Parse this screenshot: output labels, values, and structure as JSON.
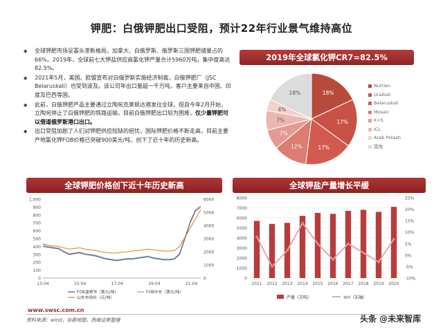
{
  "title": "钾肥：白俄钾肥出口受阻，预计22年行业景气维持高位",
  "bullets": [
    {
      "text": "全球钾肥市场呈寡头垄断格局，加拿大、白俄罗斯、俄罗斯三国钾肥储量占的66%。2019年，全球前七大钾盐供应商氯化钾产量合计5960万吨，集中度高达82.5%。"
    },
    {
      "text": "2021年5月，美国、欧盟宣布对白俄罗斯实施经济制裁，白俄钾肥厂（JSC Belaruskali）也受到波及。该公司年出口量超一千万吨，客户主要来自中国、印度及巴西等国。"
    },
    {
      "text": "此前，白俄钾肥产品主要通过立陶宛克莱佩达港发往全球，但自今年2月开始，立陶宛停止了白俄钾肥的铁路运输，目前白俄钾肥出口较为困难，",
      "highlight": "仅少量钾肥可以借道俄罗斯港口出口。"
    },
    {
      "text": "出口受阻加剧了人们对钾肥供应短缺的担忧，国际钾肥价格不断走高，目前主要产地氯化钾FOB价格已突破900美元/吨，创下了近十年的历史新高。"
    }
  ],
  "pie_panel": {
    "title": "2019年全球氯化钾CR7=82.5%",
    "chart_data": {
      "type": "pie",
      "labels": [
        "Nutrien",
        "Uralkali",
        "Belaruskali",
        "Mosaic",
        "K+S",
        "ICL",
        "Arab Potash",
        "其他"
      ],
      "values": [
        18,
        17,
        17,
        12,
        7,
        7,
        4,
        18
      ],
      "value_labels": [
        "18%",
        "17%",
        "17%",
        "12%",
        "7%",
        "7%",
        "4%",
        "18%"
      ],
      "colors": [
        "#b84a3c",
        "#c75245",
        "#d25b4f",
        "#dc7c73",
        "#e49a93",
        "#ebb7b1",
        "#f2d0cc",
        "#dcdcdc"
      ]
    }
  },
  "line_panel": {
    "title": "全球钾肥价格创下近十年历史新高",
    "chart_data": {
      "type": "line",
      "x_ticks": [
        "13-04",
        "15-04",
        "17-04",
        "19-04",
        "21-04"
      ],
      "y_left_ticks": [
        "0",
        "100",
        "200",
        "300",
        "400",
        "500",
        "600",
        "700",
        "800",
        "900",
        "1,000"
      ],
      "y_right_ticks": [
        "0",
        "1000",
        "2000",
        "3000",
        "4000",
        "5000",
        "6000"
      ],
      "ylim_left": [
        0,
        1000
      ],
      "ylim_right": [
        0,
        6000
      ],
      "series": [
        {
          "name": "FOB温哥华（美元/吨）",
          "axis": "left",
          "color": "#2f5597",
          "values": [
            400,
            390,
            380,
            370,
            330,
            300,
            310,
            320,
            300,
            290,
            280,
            260,
            240,
            230,
            220,
            230,
            240,
            240,
            250,
            260,
            270,
            250,
            240,
            230,
            230,
            240,
            300,
            500,
            700,
            850,
            900
          ]
        },
        {
          "name": "FOB中东（美元/吨）",
          "axis": "left",
          "color": "#9e9e9e",
          "values": [
            420,
            400,
            390,
            380,
            340,
            310,
            320,
            330,
            310,
            300,
            290,
            270,
            250,
            240,
            230,
            240,
            250,
            250,
            260,
            270,
            280,
            260,
            250,
            240,
            240,
            250,
            320,
            520,
            720,
            870,
            920
          ]
        },
        {
          "name": "山东市场价（元/吨）",
          "axis": "right",
          "color": "#e07b20",
          "values": [
            2600,
            2500,
            2450,
            2400,
            2300,
            2200,
            2250,
            2300,
            2200,
            2150,
            2100,
            2000,
            1950,
            1900,
            1900,
            1950,
            2000,
            2050,
            2100,
            2150,
            2200,
            2150,
            2100,
            2050,
            2050,
            2100,
            2400,
            3100,
            3800,
            4500,
            5200
          ]
        }
      ],
      "legend": [
        "FOB温哥华（美元/吨）",
        "FOB中东（美元/吨）",
        "山东市场价（元/吨）"
      ]
    }
  },
  "bar_panel": {
    "title": "全球钾盐产量增长平缓",
    "chart_data": {
      "type": "bar",
      "categories": [
        "2011",
        "2012",
        "2013",
        "2014",
        "2015",
        "2016",
        "2017",
        "2018",
        "2019",
        "2020"
      ],
      "series": [
        {
          "name": "产量（万吨）",
          "type": "bar",
          "axis": "left",
          "color": "#b83c3c",
          "values": [
            5700,
            5400,
            5500,
            6200,
            6500,
            6400,
            6700,
            6800,
            6600,
            7100
          ]
        },
        {
          "name": "YoY（右轴）",
          "type": "line",
          "axis": "right",
          "color": "#e8a8a8",
          "values": [
            8,
            -5,
            2,
            14,
            5,
            -2,
            5,
            1,
            -3,
            7
          ]
        }
      ],
      "y_left_ticks": [
        "0",
        "1000",
        "2000",
        "3000",
        "4000",
        "5000",
        "6000",
        "7000",
        "8000"
      ],
      "y_right_ticks": [
        "-10%",
        "-5%",
        "0%",
        "5%",
        "10%",
        "15%",
        "20%",
        "25%"
      ],
      "ylim_left": [
        0,
        8000
      ],
      "ylim_right": [
        -10,
        25
      ]
    }
  },
  "footer": {
    "url": "www.swsc.com.cn",
    "source": "资料来源：wind，谷歌地图，西南证券整理",
    "brand": "头条 @未来智库"
  }
}
